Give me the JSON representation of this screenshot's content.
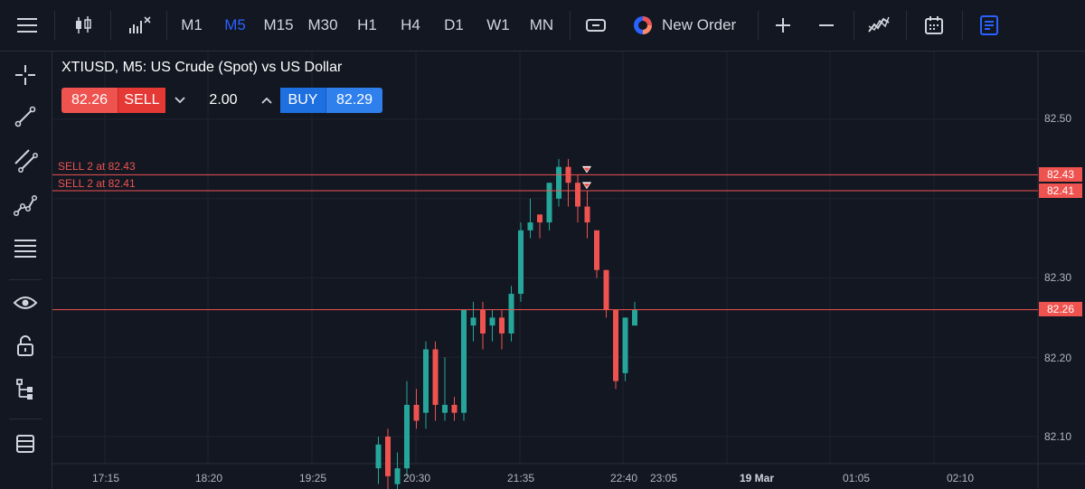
{
  "toolbar": {
    "timeframes": [
      "M1",
      "M5",
      "M15",
      "M30",
      "H1",
      "H4",
      "D1",
      "W1",
      "MN"
    ],
    "active_timeframe": "M5",
    "new_order_label": "New Order"
  },
  "chart": {
    "title": "XTIUSD, M5: US Crude (Spot) vs US Dollar",
    "sell_price": "82.26",
    "sell_label": "SELL",
    "volume": "2.00",
    "buy_label": "BUY",
    "buy_price": "82.29",
    "orders": [
      {
        "label": "SELL 2 at 82.43",
        "price": "82.43"
      },
      {
        "label": "SELL 2 at 82.41",
        "price": "82.41"
      }
    ],
    "current_price": "82.26",
    "y_labels": [
      "82.50",
      "82.30",
      "82.20",
      "82.10"
    ],
    "x_labels": [
      "17:15",
      "18:20",
      "19:25",
      "20:30",
      "21:35",
      "22:40",
      "23:05",
      "19 Mar",
      "01:05",
      "02:10"
    ]
  },
  "colors": {
    "up": "#26a69a",
    "down": "#ef5350",
    "accent": "#2962ff",
    "bg": "#131722"
  },
  "chart_data": {
    "type": "candlestick",
    "ylim": [
      82.05,
      82.59
    ],
    "candles": [
      {
        "o": 82.06,
        "h": 82.1,
        "l": 82.04,
        "c": 82.09
      },
      {
        "o": 82.1,
        "h": 82.11,
        "l": 82.03,
        "c": 82.05
      },
      {
        "o": 82.04,
        "h": 82.08,
        "l": 82.03,
        "c": 82.06
      },
      {
        "o": 82.06,
        "h": 82.17,
        "l": 82.05,
        "c": 82.14
      },
      {
        "o": 82.14,
        "h": 82.16,
        "l": 82.11,
        "c": 82.12
      },
      {
        "o": 82.13,
        "h": 82.22,
        "l": 82.11,
        "c": 82.21
      },
      {
        "o": 82.21,
        "h": 82.22,
        "l": 82.12,
        "c": 82.14
      },
      {
        "o": 82.13,
        "h": 82.2,
        "l": 82.12,
        "c": 82.14
      },
      {
        "o": 82.14,
        "h": 82.15,
        "l": 82.12,
        "c": 82.13
      },
      {
        "o": 82.13,
        "h": 82.26,
        "l": 82.12,
        "c": 82.26
      },
      {
        "o": 82.24,
        "h": 82.27,
        "l": 82.22,
        "c": 82.25
      },
      {
        "o": 82.26,
        "h": 82.27,
        "l": 82.21,
        "c": 82.23
      },
      {
        "o": 82.24,
        "h": 82.26,
        "l": 82.22,
        "c": 82.25
      },
      {
        "o": 82.25,
        "h": 82.26,
        "l": 82.21,
        "c": 82.23
      },
      {
        "o": 82.23,
        "h": 82.29,
        "l": 82.22,
        "c": 82.28
      },
      {
        "o": 82.28,
        "h": 82.37,
        "l": 82.27,
        "c": 82.36
      },
      {
        "o": 82.36,
        "h": 82.4,
        "l": 82.35,
        "c": 82.37
      },
      {
        "o": 82.38,
        "h": 82.38,
        "l": 82.35,
        "c": 82.37
      },
      {
        "o": 82.37,
        "h": 82.42,
        "l": 82.36,
        "c": 82.42
      },
      {
        "o": 82.4,
        "h": 82.45,
        "l": 82.39,
        "c": 82.44
      },
      {
        "o": 82.44,
        "h": 82.45,
        "l": 82.39,
        "c": 82.42
      },
      {
        "o": 82.42,
        "h": 82.43,
        "l": 82.37,
        "c": 82.39
      },
      {
        "o": 82.39,
        "h": 82.41,
        "l": 82.35,
        "c": 82.37
      },
      {
        "o": 82.36,
        "h": 82.36,
        "l": 82.3,
        "c": 82.31
      },
      {
        "o": 82.31,
        "h": 82.31,
        "l": 82.25,
        "c": 82.26
      },
      {
        "o": 82.26,
        "h": 82.26,
        "l": 82.16,
        "c": 82.17
      },
      {
        "o": 82.18,
        "h": 82.25,
        "l": 82.17,
        "c": 82.25
      },
      {
        "o": 82.24,
        "h": 82.27,
        "l": 82.24,
        "c": 82.26
      }
    ]
  }
}
